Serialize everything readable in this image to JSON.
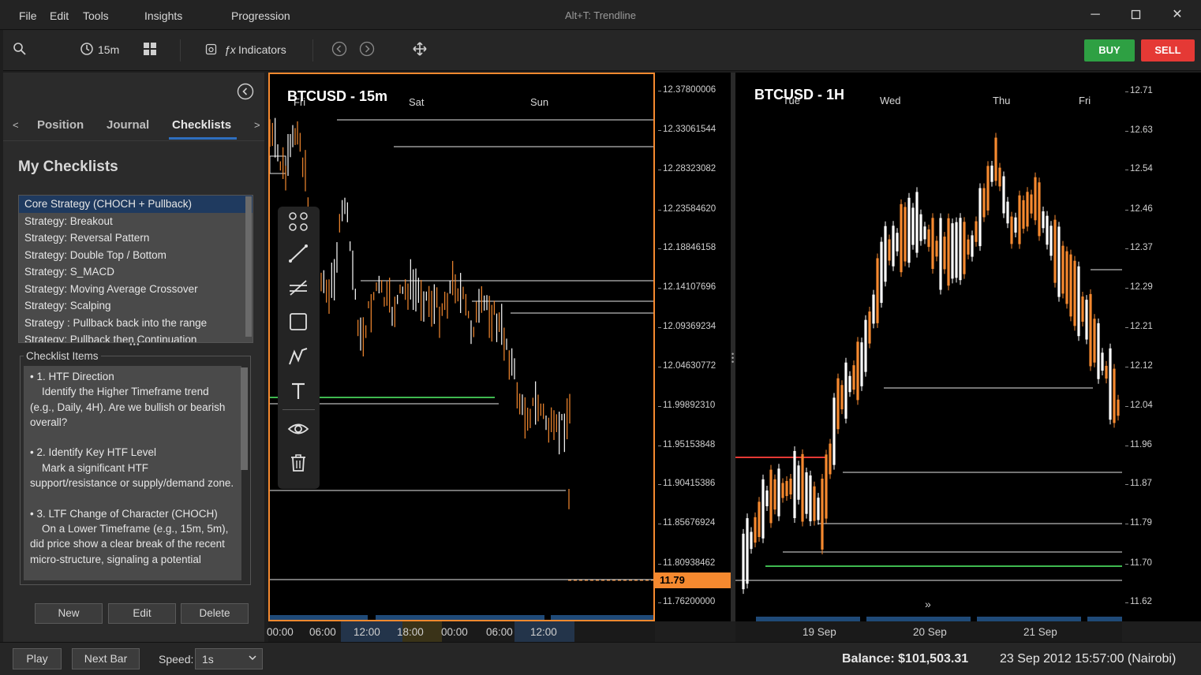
{
  "menu": {
    "file": "File",
    "edit": "Edit",
    "tools": "Tools",
    "insights": "Insights",
    "progression": "Progression"
  },
  "window": {
    "title": "Alt+T: Trendline"
  },
  "toolbar": {
    "timeframe": "15m",
    "indicators": "Indicators",
    "indicators_fx": "ƒx",
    "buy": "BUY",
    "sell": "SELL"
  },
  "left": {
    "tabs": [
      "Position",
      "Journal",
      "Checklists"
    ],
    "active_tab": "Checklists",
    "heading": "My Checklists",
    "checklists": [
      "Core Strategy (CHOCH + Pullback)",
      "Strategy: Breakout",
      "Strategy: Reversal Pattern",
      "Strategy: Double Top / Bottom",
      "Strategy: S_MACD",
      "Strategy: Moving Average Crossover",
      "Strategy: Scalping",
      "Strategy : Pullback back into the range",
      "Strategy: Pullback then Continuation"
    ],
    "items_label": "Checklist Items",
    "items_text": "• 1. HTF Direction\n    Identify the Higher Timeframe trend (e.g., Daily, 4H). Are we bullish or bearish overall?\n\n• 2. Identify Key HTF Level\n    Mark a significant HTF support/resistance or supply/demand zone.\n\n• 3. LTF Change of Character (CHOCH)\n    On a Lower Timeframe (e.g., 15m, 5m), did price show a clear break of the recent micro-structure, signaling a potential",
    "buttons": {
      "new": "New",
      "edit": "Edit",
      "delete": "Delete"
    }
  },
  "chart1": {
    "title": "BTCUSD - 15m",
    "days": [
      "Fri",
      "Sat",
      "Sun"
    ],
    "yticks": [
      "12.37800006",
      "12.33061544",
      "12.28323082",
      "12.23584620",
      "12.18846158",
      "12.14107696",
      "12.09369234",
      "12.04630772",
      "11.99892310",
      "11.95153848",
      "11.90415386",
      "11.85676924",
      "11.80938462",
      "11.76200000"
    ],
    "current_price": "11.79",
    "xticks": [
      "00:00",
      "06:00",
      "12:00",
      "18:00",
      "00:00",
      "06:00",
      "12:00"
    ]
  },
  "chart2": {
    "title": "BTCUSD - 1H",
    "days": [
      "Tue",
      "Wed",
      "Thu",
      "Fri"
    ],
    "yticks": [
      "12.71",
      "12.63",
      "12.54",
      "12.46",
      "12.37",
      "12.29",
      "12.21",
      "12.12",
      "12.04",
      "11.96",
      "11.87",
      "11.79",
      "11.70",
      "11.62"
    ],
    "xticks": [
      "19 Sep",
      "20 Sep",
      "21 Sep"
    ]
  },
  "bottom": {
    "play": "Play",
    "next_bar": "Next Bar",
    "speed_label": "Speed:",
    "speed_value": "1s",
    "balance": "Balance: $101,503.31",
    "datetime": "23 Sep 2012 15:57:00 (Nairobi)"
  },
  "colors": {
    "accent": "#f5892f",
    "buy": "#2ea043",
    "sell": "#e53935",
    "tab_underline": "#2f6fbf",
    "up_candle": "#ffffff",
    "down_candle": "#f5892f"
  }
}
